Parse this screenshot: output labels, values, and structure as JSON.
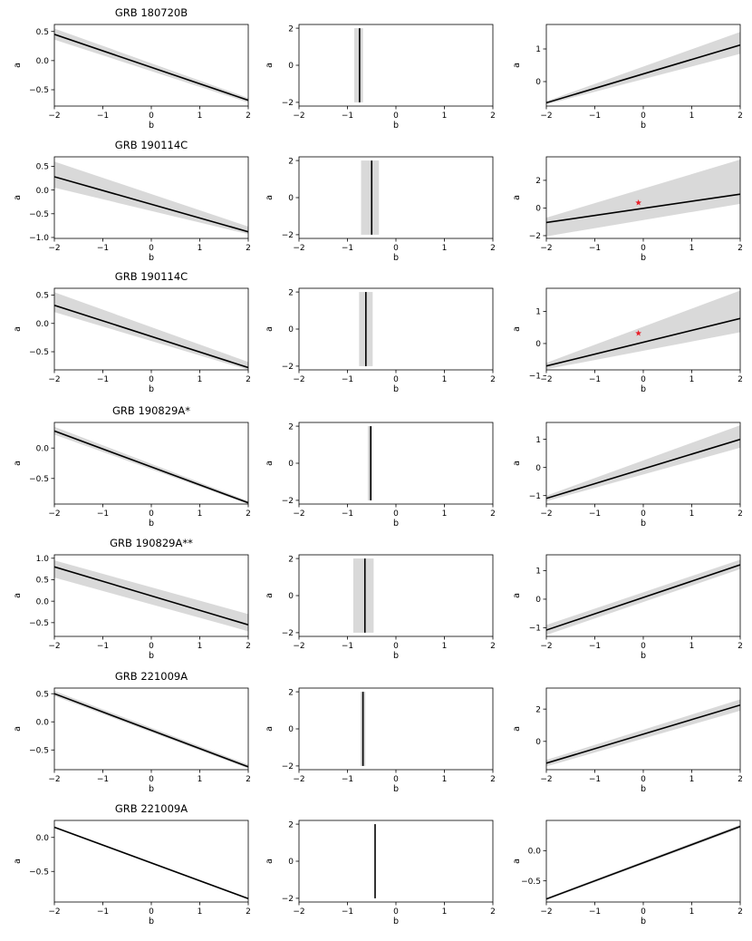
{
  "figure": {
    "row_titles": [
      "GRB 180720B",
      "GRB 190114C",
      "GRB 190114C",
      "GRB 190829A*",
      "GRB 190829A**",
      "GRB 221009A",
      "GRB 221009A"
    ]
  },
  "chart_data": [
    {
      "type": "line",
      "row": 0,
      "col": 0,
      "title": "GRB 180720B",
      "xlabel": "b",
      "ylabel": "a",
      "xlim": [
        -2,
        2
      ],
      "ylim": [
        -0.78,
        0.62
      ],
      "xticks": [
        -2,
        -1,
        0,
        1,
        2
      ],
      "xticklabels": [
        "−2",
        "−1",
        "0",
        "1",
        "2"
      ],
      "yticks": [
        0.5,
        0,
        -0.5
      ],
      "yticklabels": [
        "0.5",
        "0.0",
        "−0.5"
      ],
      "series": [
        {
          "x": [
            -2,
            2
          ],
          "y": [
            0.45,
            -0.68
          ]
        }
      ],
      "band": {
        "x": [
          -2,
          2
        ],
        "lower": [
          0.36,
          -0.72
        ],
        "upper": [
          0.55,
          -0.64
        ]
      }
    },
    {
      "type": "line",
      "row": 0,
      "col": 1,
      "title": "",
      "xlabel": "b",
      "ylabel": "a",
      "xlim": [
        -2,
        2
      ],
      "ylim": [
        -2.2,
        2.2
      ],
      "xticks": [
        -2,
        -1,
        0,
        1,
        2
      ],
      "xticklabels": [
        "−2",
        "−1",
        "0",
        "1",
        "2"
      ],
      "yticks": [
        2,
        0,
        -2
      ],
      "yticklabels": [
        "2",
        "0",
        "−2"
      ],
      "series": [
        {
          "x": [
            -0.75,
            -0.75
          ],
          "y": [
            -2,
            2
          ]
        }
      ],
      "vband": {
        "xmin": -0.86,
        "xmax": -0.68,
        "ymin": -2,
        "ymax": 2
      }
    },
    {
      "type": "line",
      "row": 0,
      "col": 2,
      "title": "",
      "xlabel": "b",
      "ylabel": "a",
      "xlim": [
        -2,
        2
      ],
      "ylim": [
        -0.75,
        1.75
      ],
      "xticks": [
        -2,
        -1,
        0,
        1,
        2
      ],
      "xticklabels": [
        "−2",
        "−1",
        "0",
        "1",
        "2"
      ],
      "yticks": [
        1,
        0
      ],
      "yticklabels": [
        "1",
        "0"
      ],
      "series": [
        {
          "x": [
            -2,
            2
          ],
          "y": [
            -0.65,
            1.12
          ]
        }
      ],
      "band": {
        "x": [
          -2,
          2
        ],
        "lower": [
          -0.7,
          0.85
        ],
        "upper": [
          -0.6,
          1.52
        ]
      }
    },
    {
      "type": "line",
      "row": 1,
      "col": 0,
      "title": "GRB 190114C",
      "xlabel": "b",
      "ylabel": "a",
      "xlim": [
        -2,
        2
      ],
      "ylim": [
        -1.02,
        0.7
      ],
      "xticks": [
        -2,
        -1,
        0,
        1,
        2
      ],
      "xticklabels": [
        "−2",
        "−1",
        "0",
        "1",
        "2"
      ],
      "yticks": [
        0.5,
        0,
        -0.5,
        -1
      ],
      "yticklabels": [
        "0.5",
        "0.0",
        "−0.5",
        "−1.0"
      ],
      "series": [
        {
          "x": [
            -2,
            2
          ],
          "y": [
            0.28,
            -0.88
          ]
        }
      ],
      "band": {
        "x": [
          -2,
          2
        ],
        "lower": [
          0.05,
          -0.93
        ],
        "upper": [
          0.6,
          -0.77
        ]
      }
    },
    {
      "type": "line",
      "row": 1,
      "col": 1,
      "title": "",
      "xlabel": "b",
      "ylabel": "a",
      "xlim": [
        -2,
        2
      ],
      "ylim": [
        -2.2,
        2.2
      ],
      "xticks": [
        -2,
        -1,
        0,
        1,
        2
      ],
      "xticklabels": [
        "−2",
        "−1",
        "0",
        "1",
        "2"
      ],
      "yticks": [
        2,
        0,
        -2
      ],
      "yticklabels": [
        "2",
        "0",
        "−2"
      ],
      "series": [
        {
          "x": [
            -0.5,
            -0.5
          ],
          "y": [
            -2,
            2
          ]
        }
      ],
      "vband": {
        "xmin": -0.72,
        "xmax": -0.35,
        "ymin": -2,
        "ymax": 2
      }
    },
    {
      "type": "line",
      "row": 1,
      "col": 2,
      "title": "",
      "xlabel": "b",
      "ylabel": "a",
      "xlim": [
        -2,
        2
      ],
      "ylim": [
        -2.2,
        3.7
      ],
      "xticks": [
        -2,
        -1,
        0,
        1,
        2
      ],
      "xticklabels": [
        "−2",
        "−1",
        "0",
        "1",
        "2"
      ],
      "yticks": [
        2,
        0,
        -2
      ],
      "yticklabels": [
        "2",
        "0",
        "−2"
      ],
      "series": [
        {
          "x": [
            -2,
            2
          ],
          "y": [
            -1.05,
            1.0
          ]
        }
      ],
      "band": {
        "x": [
          -2,
          2
        ],
        "lower": [
          -2.05,
          0.3
        ],
        "upper": [
          -0.7,
          3.5
        ]
      },
      "marker": {
        "x": -0.1,
        "y": 0.38,
        "symbol": "star",
        "color": "#e8202a"
      }
    },
    {
      "type": "line",
      "row": 2,
      "col": 0,
      "title": "GRB 190114C",
      "xlabel": "b",
      "ylabel": "a",
      "xlim": [
        -2,
        2
      ],
      "ylim": [
        -0.82,
        0.62
      ],
      "xticks": [
        -2,
        -1,
        0,
        1,
        2
      ],
      "xticklabels": [
        "−2",
        "−1",
        "0",
        "1",
        "2"
      ],
      "yticks": [
        0.5,
        0,
        -0.5
      ],
      "yticklabels": [
        "0.5",
        "0.0",
        "−0.5"
      ],
      "series": [
        {
          "x": [
            -2,
            2
          ],
          "y": [
            0.32,
            -0.78
          ]
        }
      ],
      "band": {
        "x": [
          -2,
          2
        ],
        "lower": [
          0.2,
          -0.82
        ],
        "upper": [
          0.55,
          -0.68
        ]
      }
    },
    {
      "type": "line",
      "row": 2,
      "col": 1,
      "title": "",
      "xlabel": "b",
      "ylabel": "a",
      "xlim": [
        -2,
        2
      ],
      "ylim": [
        -2.2,
        2.2
      ],
      "xticks": [
        -2,
        -1,
        0,
        1,
        2
      ],
      "xticklabels": [
        "−2",
        "−1",
        "0",
        "1",
        "2"
      ],
      "yticks": [
        2,
        0,
        -2
      ],
      "yticklabels": [
        "2",
        "0",
        "−2"
      ],
      "series": [
        {
          "x": [
            -0.62,
            -0.62
          ],
          "y": [
            -2,
            2
          ]
        }
      ],
      "vband": {
        "xmin": -0.76,
        "xmax": -0.48,
        "ymin": -2,
        "ymax": 2
      }
    },
    {
      "type": "line",
      "row": 2,
      "col": 2,
      "title": "",
      "xlabel": "b",
      "ylabel": "a",
      "xlim": [
        -2,
        2
      ],
      "ylim": [
        -0.82,
        1.72
      ],
      "xticks": [
        -2,
        -1,
        0,
        1,
        2
      ],
      "xticklabels": [
        "−2",
        "−1",
        "0",
        "1",
        "2"
      ],
      "yticks": [
        1,
        0,
        -1
      ],
      "yticklabels": [
        "1",
        "0",
        "−1"
      ],
      "series": [
        {
          "x": [
            -2,
            2
          ],
          "y": [
            -0.7,
            0.78
          ]
        }
      ],
      "band": {
        "x": [
          -2,
          2
        ],
        "lower": [
          -0.8,
          0.35
        ],
        "upper": [
          -0.6,
          1.65
        ]
      },
      "marker": {
        "x": -0.1,
        "y": 0.32,
        "symbol": "star",
        "color": "#e8202a"
      }
    },
    {
      "type": "line",
      "row": 3,
      "col": 0,
      "title": "GRB 190829A*",
      "xlabel": "b",
      "ylabel": "a",
      "xlim": [
        -2,
        2
      ],
      "ylim": [
        -0.92,
        0.42
      ],
      "xticks": [
        -2,
        -1,
        0,
        1,
        2
      ],
      "xticklabels": [
        "−2",
        "−1",
        "0",
        "1",
        "2"
      ],
      "yticks": [
        0,
        -0.5
      ],
      "yticklabels": [
        "0.0",
        "−0.5"
      ],
      "series": [
        {
          "x": [
            -2,
            2
          ],
          "y": [
            0.28,
            -0.9
          ]
        }
      ],
      "band": {
        "x": [
          -2,
          2
        ],
        "lower": [
          0.22,
          -0.92
        ],
        "upper": [
          0.35,
          -0.87
        ]
      }
    },
    {
      "type": "line",
      "row": 3,
      "col": 1,
      "title": "",
      "xlabel": "b",
      "ylabel": "a",
      "xlim": [
        -2,
        2
      ],
      "ylim": [
        -2.2,
        2.2
      ],
      "xticks": [
        -2,
        -1,
        0,
        1,
        2
      ],
      "xticklabels": [
        "−2",
        "−1",
        "0",
        "1",
        "2"
      ],
      "yticks": [
        2,
        0,
        -2
      ],
      "yticklabels": [
        "2",
        "0",
        "−2"
      ],
      "series": [
        {
          "x": [
            -0.52,
            -0.52
          ],
          "y": [
            -2,
            2
          ]
        }
      ],
      "vband": {
        "xmin": -0.58,
        "xmax": -0.48,
        "ymin": -2,
        "ymax": 2
      }
    },
    {
      "type": "line",
      "row": 3,
      "col": 2,
      "title": "",
      "xlabel": "b",
      "ylabel": "a",
      "xlim": [
        -2,
        2
      ],
      "ylim": [
        -1.3,
        1.6
      ],
      "xticks": [
        -2,
        -1,
        0,
        1,
        2
      ],
      "xticklabels": [
        "−2",
        "−1",
        "0",
        "1",
        "2"
      ],
      "yticks": [
        1,
        0,
        -1
      ],
      "yticklabels": [
        "1",
        "0",
        "−1"
      ],
      "series": [
        {
          "x": [
            -2,
            2
          ],
          "y": [
            -1.1,
            1.0
          ]
        }
      ],
      "band": {
        "x": [
          -2,
          2
        ],
        "lower": [
          -1.2,
          0.7
        ],
        "upper": [
          -1.0,
          1.5
        ]
      }
    },
    {
      "type": "line",
      "row": 4,
      "col": 0,
      "title": "GRB 190829A**",
      "xlabel": "b",
      "ylabel": "a",
      "xlim": [
        -2,
        2
      ],
      "ylim": [
        -0.82,
        1.08
      ],
      "xticks": [
        -2,
        -1,
        0,
        1,
        2
      ],
      "xticklabels": [
        "−2",
        "−1",
        "0",
        "1",
        "2"
      ],
      "yticks": [
        1,
        0.5,
        0,
        -0.5
      ],
      "yticklabels": [
        "1.0",
        "0.5",
        "0.0",
        "−0.5"
      ],
      "series": [
        {
          "x": [
            -2,
            2
          ],
          "y": [
            0.8,
            -0.55
          ]
        }
      ],
      "band": {
        "x": [
          -2,
          2
        ],
        "lower": [
          0.55,
          -0.7
        ],
        "upper": [
          0.95,
          -0.3
        ]
      }
    },
    {
      "type": "line",
      "row": 4,
      "col": 1,
      "title": "",
      "xlabel": "b",
      "ylabel": "a",
      "xlim": [
        -2,
        2
      ],
      "ylim": [
        -2.2,
        2.2
      ],
      "xticks": [
        -2,
        -1,
        0,
        1,
        2
      ],
      "xticklabels": [
        "−2",
        "−1",
        "0",
        "1",
        "2"
      ],
      "yticks": [
        2,
        0,
        -2
      ],
      "yticklabels": [
        "2",
        "0",
        "−2"
      ],
      "series": [
        {
          "x": [
            -0.64,
            -0.64
          ],
          "y": [
            -2,
            2
          ]
        }
      ],
      "vband": {
        "xmin": -0.88,
        "xmax": -0.46,
        "ymin": -2,
        "ymax": 2
      }
    },
    {
      "type": "line",
      "row": 4,
      "col": 2,
      "title": "",
      "xlabel": "b",
      "ylabel": "a",
      "xlim": [
        -2,
        2
      ],
      "ylim": [
        -1.3,
        1.55
      ],
      "xticks": [
        -2,
        -1,
        0,
        1,
        2
      ],
      "xticklabels": [
        "−2",
        "−1",
        "0",
        "1",
        "2"
      ],
      "yticks": [
        1,
        0,
        -1
      ],
      "yticklabels": [
        "1",
        "0",
        "−1"
      ],
      "series": [
        {
          "x": [
            -2,
            2
          ],
          "y": [
            -1.08,
            1.2
          ]
        }
      ],
      "band": {
        "x": [
          -2,
          2
        ],
        "lower": [
          -1.25,
          1.05
        ],
        "upper": [
          -0.9,
          1.38
        ]
      }
    },
    {
      "type": "line",
      "row": 5,
      "col": 0,
      "title": "GRB 221009A",
      "xlabel": "b",
      "ylabel": "a",
      "xlim": [
        -2,
        2
      ],
      "ylim": [
        -0.85,
        0.6
      ],
      "xticks": [
        -2,
        -1,
        0,
        1,
        2
      ],
      "xticklabels": [
        "−2",
        "−1",
        "0",
        "1",
        "2"
      ],
      "yticks": [
        0.5,
        0,
        -0.5
      ],
      "yticklabels": [
        "0.5",
        "0.0",
        "−0.5"
      ],
      "series": [
        {
          "x": [
            -2,
            2
          ],
          "y": [
            0.5,
            -0.8
          ]
        }
      ],
      "band": {
        "x": [
          -2,
          2
        ],
        "lower": [
          0.46,
          -0.83
        ],
        "upper": [
          0.55,
          -0.76
        ]
      }
    },
    {
      "type": "line",
      "row": 5,
      "col": 1,
      "title": "",
      "xlabel": "b",
      "ylabel": "a",
      "xlim": [
        -2,
        2
      ],
      "ylim": [
        -2.2,
        2.2
      ],
      "xticks": [
        -2,
        -1,
        0,
        1,
        2
      ],
      "xticklabels": [
        "−2",
        "−1",
        "0",
        "1",
        "2"
      ],
      "yticks": [
        2,
        0,
        -2
      ],
      "yticklabels": [
        "2",
        "0",
        "−2"
      ],
      "series": [
        {
          "x": [
            -0.68,
            -0.68
          ],
          "y": [
            -2,
            2
          ]
        }
      ],
      "vband": {
        "xmin": -0.73,
        "xmax": -0.63,
        "ymin": -2,
        "ymax": 2
      }
    },
    {
      "type": "line",
      "row": 5,
      "col": 2,
      "title": "",
      "xlabel": "b",
      "ylabel": "a",
      "xlim": [
        -2,
        2
      ],
      "ylim": [
        -1.75,
        3.3
      ],
      "xticks": [
        -2,
        -1,
        0,
        1,
        2
      ],
      "xticklabels": [
        "−2",
        "−1",
        "0",
        "1",
        "2"
      ],
      "yticks": [
        2,
        0
      ],
      "yticklabels": [
        "2",
        "0"
      ],
      "series": [
        {
          "x": [
            -2,
            2
          ],
          "y": [
            -1.35,
            2.25
          ]
        }
      ],
      "band": {
        "x": [
          -2,
          2
        ],
        "lower": [
          -1.55,
          1.9
        ],
        "upper": [
          -1.15,
          2.6
        ]
      }
    },
    {
      "type": "line",
      "row": 6,
      "col": 0,
      "title": "GRB 221009A",
      "xlabel": "b",
      "ylabel": "a",
      "xlim": [
        -2,
        2
      ],
      "ylim": [
        -0.95,
        0.25
      ],
      "xticks": [
        -2,
        -1,
        0,
        1,
        2
      ],
      "xticklabels": [
        "−2",
        "−1",
        "0",
        "1",
        "2"
      ],
      "yticks": [
        0,
        -0.5
      ],
      "yticklabels": [
        "0.0",
        "−0.5"
      ],
      "series": [
        {
          "x": [
            -2,
            2
          ],
          "y": [
            0.15,
            -0.9
          ]
        }
      ]
    },
    {
      "type": "line",
      "row": 6,
      "col": 1,
      "title": "",
      "xlabel": "b",
      "ylabel": "a",
      "xlim": [
        -2,
        2
      ],
      "ylim": [
        -2.2,
        2.2
      ],
      "xticks": [
        -2,
        -1,
        0,
        1,
        2
      ],
      "xticklabels": [
        "−2",
        "−1",
        "0",
        "1",
        "2"
      ],
      "yticks": [
        2,
        0,
        -2
      ],
      "yticklabels": [
        "2",
        "0",
        "−2"
      ],
      "series": [
        {
          "x": [
            -0.43,
            -0.43
          ],
          "y": [
            -2,
            2
          ]
        }
      ]
    },
    {
      "type": "line",
      "row": 6,
      "col": 2,
      "title": "",
      "xlabel": "b",
      "ylabel": "a",
      "xlim": [
        -2,
        2
      ],
      "ylim": [
        -0.85,
        0.5
      ],
      "xticks": [
        -2,
        -1,
        0,
        1,
        2
      ],
      "xticklabels": [
        "−2",
        "−1",
        "0",
        "1",
        "2"
      ],
      "yticks": [
        0,
        -0.5
      ],
      "yticklabels": [
        "0.0",
        "−0.5"
      ],
      "series": [
        {
          "x": [
            -2,
            2
          ],
          "y": [
            -0.8,
            0.4
          ]
        }
      ],
      "band": {
        "x": [
          -2,
          2
        ],
        "lower": [
          -0.82,
          0.37
        ],
        "upper": [
          -0.78,
          0.43
        ]
      }
    }
  ],
  "style": {
    "band_color": "#d9d9d9",
    "line_color": "#000000",
    "axis_color": "#000000",
    "marker_color": "#e8202a"
  }
}
